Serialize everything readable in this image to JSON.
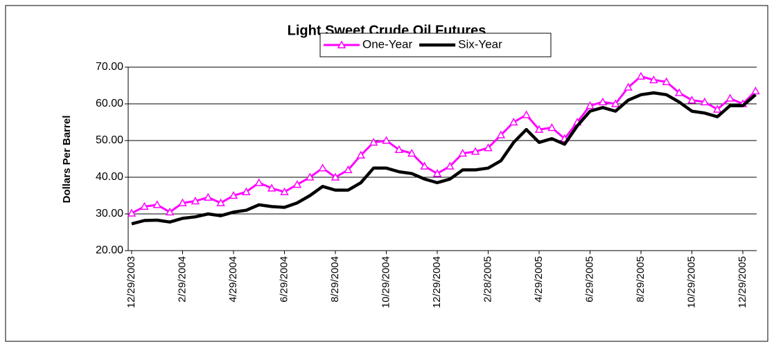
{
  "chart_data": {
    "type": "line",
    "title": "Light Sweet Crude Oil Futures",
    "y_label": "Dollars Per Barrel",
    "categories": [
      "12/29/2003",
      null,
      null,
      null,
      "2/29/2004",
      null,
      null,
      null,
      "4/29/2004",
      null,
      null,
      null,
      "6/29/2004",
      null,
      null,
      null,
      "8/29/2004",
      null,
      null,
      null,
      "10/29/2004",
      null,
      null,
      null,
      "12/29/2004",
      null,
      null,
      null,
      "2/28/2005",
      null,
      null,
      null,
      "4/29/2005",
      null,
      null,
      null,
      "6/29/2005",
      null,
      null,
      null,
      "8/29/2005",
      null,
      null,
      null,
      "10/29/2005",
      null,
      null,
      null,
      "12/29/2005",
      null
    ],
    "series": [
      {
        "name": "One-Year",
        "color": "#ff00ff",
        "marker": "triangle",
        "values": [
          30.2,
          32,
          32.5,
          30.5,
          33,
          33.5,
          34.5,
          33,
          35,
          36,
          38.5,
          37,
          36,
          38,
          40,
          42.5,
          40,
          42,
          46,
          49.5,
          50,
          47.5,
          46.5,
          43,
          41,
          43,
          46.5,
          47,
          48,
          51.5,
          55,
          57,
          53,
          53.5,
          50.5,
          55,
          59.5,
          60.5,
          60,
          64.5,
          67.5,
          66.5,
          66,
          63,
          61,
          60.5,
          58.5,
          61.5,
          60,
          63.5
        ]
      },
      {
        "name": "Six-Year",
        "color": "#000000",
        "marker": "none",
        "values": [
          27.3,
          28.2,
          28.3,
          27.8,
          28.8,
          29.2,
          30,
          29.5,
          30.5,
          31,
          32.5,
          32,
          31.8,
          33,
          35,
          37.5,
          36.5,
          36.5,
          38.5,
          42.5,
          42.5,
          41.5,
          41,
          39.5,
          38.5,
          39.5,
          42,
          42,
          42.5,
          44.5,
          49.5,
          53,
          49.5,
          50.5,
          49,
          54,
          58,
          59,
          58,
          61,
          62.5,
          63,
          62.5,
          60.5,
          58,
          57.5,
          56.5,
          59.5,
          59.5,
          62.5
        ]
      }
    ],
    "ylim": [
      20,
      70
    ],
    "yticks": [
      {
        "value": 20,
        "label": "20.00"
      },
      {
        "value": 30,
        "label": "30.00"
      },
      {
        "value": 40,
        "label": "40.00"
      },
      {
        "value": 50,
        "label": "50.00"
      },
      {
        "value": 60,
        "label": "60.00"
      },
      {
        "value": 70,
        "label": "70.00"
      }
    ],
    "grid": true,
    "legend": "top"
  }
}
